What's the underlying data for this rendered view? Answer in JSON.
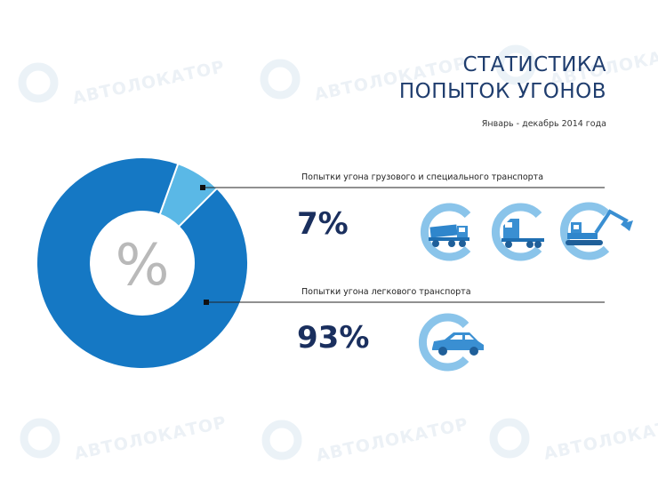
{
  "title_lines": [
    "СТАТИСТИКА",
    "ПОПЫТОК УГОНОВ"
  ],
  "subtitle": "Январь - декабрь 2014 года",
  "watermark": "АВТОЛОКАТОР",
  "center_symbol": "%",
  "colors": {
    "title": "#1f3d6e",
    "donut_main": "#1578c4",
    "donut_small": "#5ab8e6",
    "icon_ring": "#8ac4ea",
    "icon_fill": "#3a8fd2",
    "watermark": "#dde7ef"
  },
  "chart_data": {
    "type": "pie",
    "style": "donut",
    "categories": [
      "Попытки угона грузового и специального транспорта",
      "Попытки угона легкового транспорта"
    ],
    "values": [
      7,
      93
    ],
    "value_labels": [
      "7%",
      "93%"
    ],
    "colors": [
      "#5ab8e6",
      "#1578c4"
    ]
  },
  "icons": {
    "truck": [
      "dump-truck-icon",
      "semi-truck-icon",
      "excavator-icon"
    ],
    "car": [
      "car-icon"
    ]
  }
}
